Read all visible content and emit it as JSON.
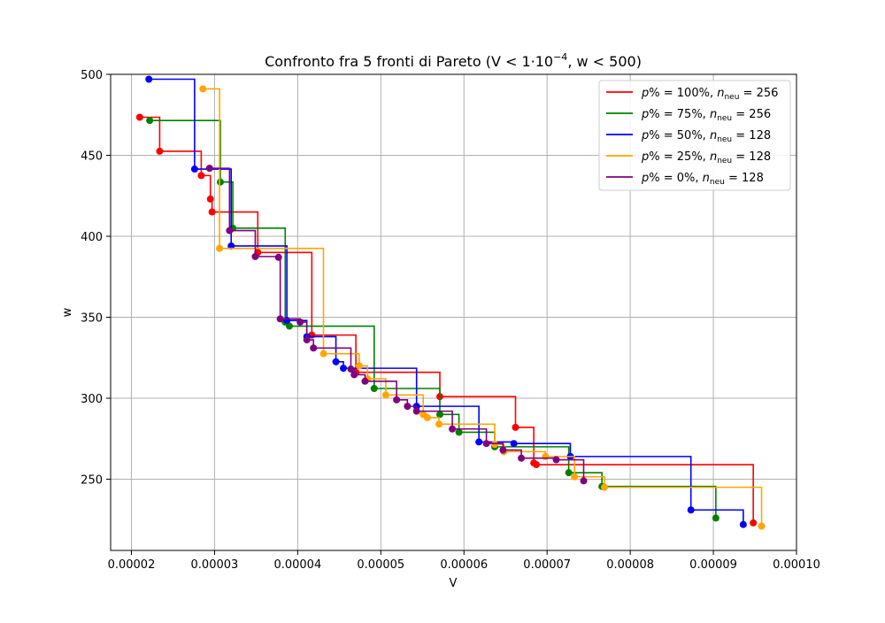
{
  "chart_data": {
    "type": "line",
    "title_main": "Confronto fra 5 fronti di Pareto (V < 1·10",
    "title_sup": "−4",
    "title_tail": ", w < 500)",
    "xlabel": "V",
    "ylabel": "w",
    "xlim": [
      1.75e-05,
      0.0001
    ],
    "ylim": [
      206,
      500
    ],
    "xticks": [
      {
        "value": 2e-05,
        "label": "0.00002"
      },
      {
        "value": 3e-05,
        "label": "0.00003"
      },
      {
        "value": 4e-05,
        "label": "0.00004"
      },
      {
        "value": 5e-05,
        "label": "0.00005"
      },
      {
        "value": 6e-05,
        "label": "0.00006"
      },
      {
        "value": 7e-05,
        "label": "0.00007"
      },
      {
        "value": 8e-05,
        "label": "0.00008"
      },
      {
        "value": 9e-05,
        "label": "0.00009"
      },
      {
        "value": 0.0001,
        "label": "0.00010"
      }
    ],
    "yticks": [
      {
        "value": 250,
        "label": "250"
      },
      {
        "value": 300,
        "label": "300"
      },
      {
        "value": 350,
        "label": "350"
      },
      {
        "value": 400,
        "label": "400"
      },
      {
        "value": 450,
        "label": "450"
      },
      {
        "value": 500,
        "label": "500"
      }
    ],
    "grid": true,
    "legend_position": "top-right",
    "series": [
      {
        "key": "p100",
        "color": "#ff0000",
        "legend_p": "100%",
        "legend_n": "256",
        "points": [
          [
            2.1e-05,
            473.5
          ],
          [
            2.34e-05,
            452.5
          ],
          [
            2.84e-05,
            437.5
          ],
          [
            2.95e-05,
            423
          ],
          [
            2.97e-05,
            415
          ],
          [
            3.52e-05,
            390
          ],
          [
            4.17e-05,
            339
          ],
          [
            4.7e-05,
            316
          ],
          [
            5.71e-05,
            301
          ],
          [
            6.62e-05,
            282
          ],
          [
            6.84e-05,
            260
          ],
          [
            6.87e-05,
            259
          ],
          [
            9.48e-05,
            223
          ]
        ]
      },
      {
        "key": "p75",
        "color": "#008000",
        "legend_p": "75%",
        "legend_n": "256",
        "points": [
          [
            2.22e-05,
            471.5
          ],
          [
            3.07e-05,
            433.5
          ],
          [
            3.22e-05,
            405
          ],
          [
            3.85e-05,
            347
          ],
          [
            3.9e-05,
            344.5
          ],
          [
            4.92e-05,
            306
          ],
          [
            5.71e-05,
            290
          ],
          [
            5.94e-05,
            279
          ],
          [
            6.37e-05,
            270
          ],
          [
            7.26e-05,
            254
          ],
          [
            7.66e-05,
            245.5
          ],
          [
            9.03e-05,
            226
          ]
        ]
      },
      {
        "key": "p50",
        "color": "#0000ff",
        "legend_p": "50%",
        "legend_n": "128",
        "points": [
          [
            2.21e-05,
            497
          ],
          [
            2.76e-05,
            441.5
          ],
          [
            3.2e-05,
            394
          ],
          [
            3.87e-05,
            348
          ],
          [
            4.11e-05,
            338
          ],
          [
            4.46e-05,
            322.5
          ],
          [
            4.55e-05,
            318.5
          ],
          [
            5.43e-05,
            295
          ],
          [
            6.18e-05,
            273
          ],
          [
            6.6e-05,
            272
          ],
          [
            7.28e-05,
            264
          ],
          [
            8.73e-05,
            231
          ],
          [
            9.36e-05,
            222
          ]
        ]
      },
      {
        "key": "p25",
        "color": "#ffa500",
        "legend_p": "25%",
        "legend_n": "128",
        "points": [
          [
            2.86e-05,
            491
          ],
          [
            3.06e-05,
            392.5
          ],
          [
            4.31e-05,
            327.5
          ],
          [
            4.74e-05,
            320
          ],
          [
            4.84e-05,
            312
          ],
          [
            5.06e-05,
            302
          ],
          [
            5.51e-05,
            290
          ],
          [
            5.56e-05,
            288
          ],
          [
            5.7e-05,
            284
          ],
          [
            6.37e-05,
            271.5
          ],
          [
            6.48e-05,
            267
          ],
          [
            6.98e-05,
            264
          ],
          [
            7.33e-05,
            251.5
          ],
          [
            7.69e-05,
            245
          ],
          [
            9.58e-05,
            221
          ]
        ]
      },
      {
        "key": "p0",
        "color": "#800080",
        "legend_p": "0%",
        "legend_n": "128",
        "points": [
          [
            2.94e-05,
            442
          ],
          [
            3.18e-05,
            403.5
          ],
          [
            3.49e-05,
            387.5
          ],
          [
            3.77e-05,
            387
          ],
          [
            3.79e-05,
            349
          ],
          [
            4.03e-05,
            347
          ],
          [
            4.11e-05,
            336
          ],
          [
            4.19e-05,
            331
          ],
          [
            4.64e-05,
            318
          ],
          [
            4.68e-05,
            314.5
          ],
          [
            4.81e-05,
            310.5
          ],
          [
            5.19e-05,
            299
          ],
          [
            5.32e-05,
            295
          ],
          [
            5.43e-05,
            292
          ],
          [
            5.86e-05,
            281
          ],
          [
            6.27e-05,
            272
          ],
          [
            6.47e-05,
            268
          ],
          [
            6.69e-05,
            263
          ],
          [
            7.11e-05,
            262
          ],
          [
            7.44e-05,
            249
          ]
        ]
      }
    ]
  }
}
